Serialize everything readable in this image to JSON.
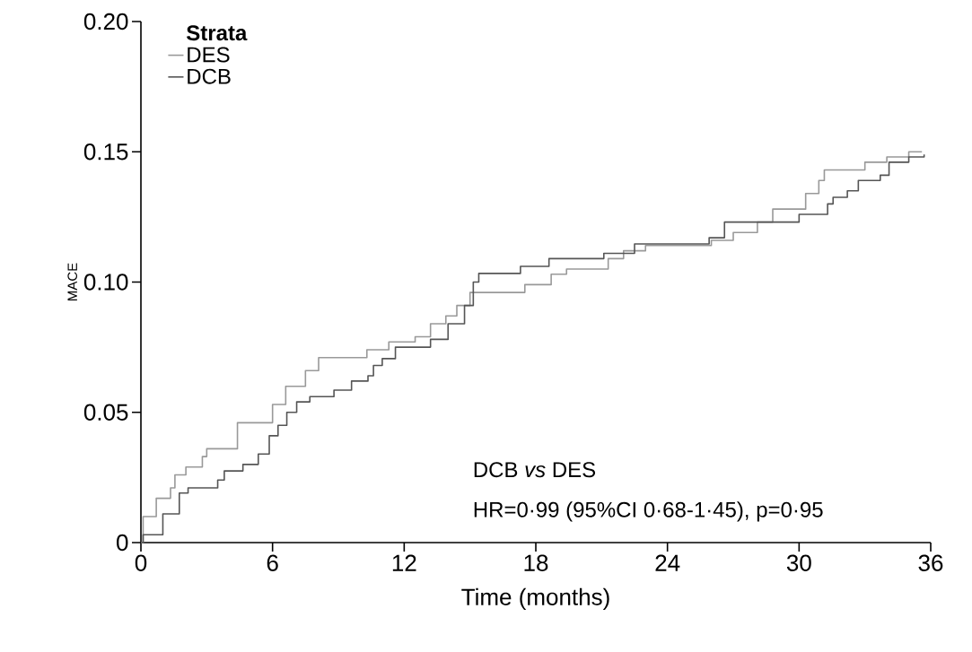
{
  "chart_data": {
    "type": "step",
    "xlabel": "Time (months)",
    "ylabel": "MACE",
    "legend_title": "Strata",
    "legend": "top left",
    "marker": "none",
    "line_style": "solid",
    "xlim": [
      0,
      36
    ],
    "xticks": [
      0,
      6,
      12,
      18,
      24,
      30,
      36
    ],
    "ylim": [
      0,
      0.2
    ],
    "yticks": [
      0,
      0.05,
      {
        "value": 0.1,
        "label": "0.10"
      },
      0.15,
      {
        "value": 0.2,
        "label": "0.20"
      }
    ],
    "series": [
      {
        "name": "DES",
        "color": "#999999",
        "x": [
          0,
          0.1,
          0.7,
          1.35,
          1.55,
          2.05,
          2.8,
          3.0,
          4.4,
          6.0,
          6.6,
          7.5,
          8.1,
          10.3,
          11.3,
          12.5,
          13.2,
          13.9,
          14.4,
          15.0,
          17.5,
          18.7,
          19.4,
          21.3,
          22.0,
          23.0,
          26.0,
          27.0,
          28.1,
          28.8,
          30.3,
          30.9,
          31.15,
          33.0,
          34.0,
          35.0,
          35.6
        ],
        "values": [
          0,
          0.01,
          0.017,
          0.021,
          0.026,
          0.029,
          0.033,
          0.036,
          0.046,
          0.053,
          0.06,
          0.066,
          0.071,
          0.074,
          0.077,
          0.079,
          0.084,
          0.087,
          0.091,
          0.096,
          0.099,
          0.103,
          0.105,
          0.109,
          0.112,
          0.114,
          0.116,
          0.119,
          0.123,
          0.128,
          0.134,
          0.139,
          0.143,
          0.146,
          0.148,
          0.15,
          0.15
        ]
      },
      {
        "name": "DCB",
        "color": "#555555",
        "x": [
          0,
          0.1,
          1.0,
          1.75,
          2.15,
          3.5,
          3.8,
          4.65,
          5.35,
          5.85,
          6.25,
          6.65,
          7.1,
          7.7,
          8.8,
          9.6,
          10.35,
          10.6,
          11.0,
          11.6,
          13.2,
          14.0,
          14.75,
          15.15,
          15.4,
          17.3,
          18.6,
          21.1,
          22.5,
          25.9,
          26.6,
          30.0,
          31.3,
          31.55,
          32.2,
          32.7,
          33.7,
          34.1,
          35.0,
          35.7
        ],
        "values": [
          0,
          0.003,
          0.011,
          0.019,
          0.021,
          0.024,
          0.0275,
          0.03,
          0.034,
          0.041,
          0.045,
          0.05,
          0.054,
          0.056,
          0.0585,
          0.062,
          0.064,
          0.068,
          0.0706,
          0.075,
          0.078,
          0.084,
          0.091,
          0.1,
          0.1033,
          0.106,
          0.109,
          0.111,
          0.1146,
          0.117,
          0.123,
          0.126,
          0.13,
          0.1325,
          0.135,
          0.139,
          0.141,
          0.146,
          0.148,
          0.149
        ]
      }
    ],
    "annotations": [
      "DCB *vs* DES",
      "HR=0·99 (95%CI 0·68-1·45), p=0·95"
    ]
  }
}
